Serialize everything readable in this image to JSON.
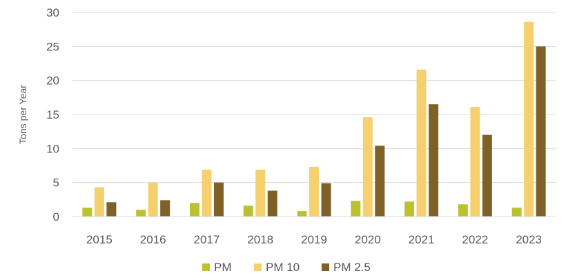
{
  "chart_data": {
    "type": "bar",
    "ylabel": "Tons per Year",
    "categories": [
      "2015",
      "2016",
      "2017",
      "2018",
      "2019",
      "2020",
      "2021",
      "2022",
      "2023"
    ],
    "series": [
      {
        "name": "PM",
        "color": "#bcc22e",
        "values": [
          1.3,
          1.0,
          2.0,
          1.6,
          0.8,
          2.3,
          2.2,
          1.8,
          1.3
        ]
      },
      {
        "name": "PM 10",
        "color": "#f5d06f",
        "values": [
          4.3,
          5.0,
          6.9,
          6.9,
          7.3,
          14.6,
          21.6,
          16.1,
          28.6
        ]
      },
      {
        "name": "PM 2.5",
        "color": "#7f6027",
        "values": [
          2.1,
          2.4,
          5.0,
          3.8,
          4.9,
          10.4,
          16.5,
          12.0,
          25.0
        ]
      }
    ],
    "ylim": [
      0,
      30
    ],
    "yticks": [
      0,
      5,
      10,
      15,
      20,
      25,
      30
    ],
    "grid": true,
    "legend_position": "bottom-center"
  }
}
